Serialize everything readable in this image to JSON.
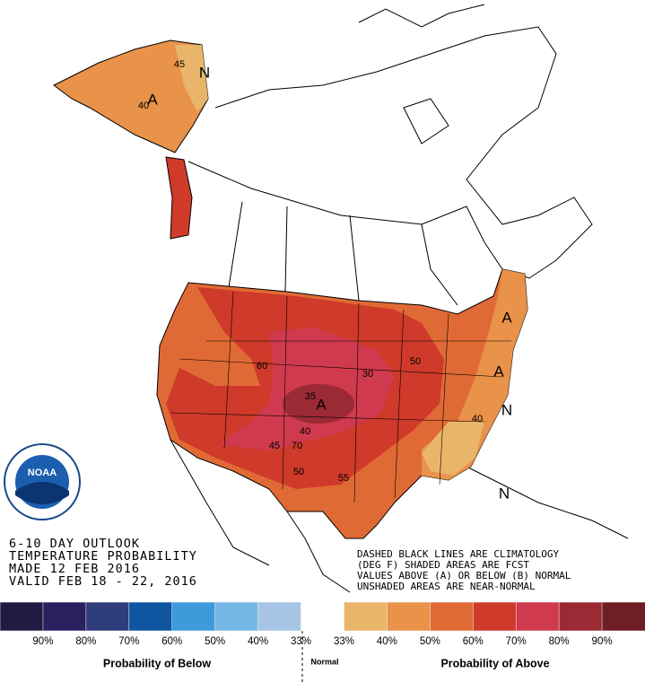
{
  "header": {
    "lines": [
      "6-10 DAY OUTLOOK",
      "TEMPERATURE PROBABILITY",
      "MADE  12 FEB 2016",
      "VALID  FEB 18 - 22, 2016"
    ]
  },
  "notes": [
    "DASHED BLACK LINES ARE CLIMATOLOGY",
    "(DEG F) SHADED AREAS ARE FCST",
    "VALUES ABOVE (A) OR BELOW (B) NORMAL",
    "UNSHADED AREAS ARE NEAR-NORMAL"
  ],
  "logo": "NOAA",
  "map_labels": [
    "A",
    "N",
    "45",
    "40",
    "A",
    "60",
    "30",
    "50",
    "35",
    "A",
    "40",
    "45",
    "70",
    "50",
    "55",
    "40",
    "A",
    "N",
    "N"
  ],
  "legend": {
    "colors": [
      "#231a43",
      "#2a2060",
      "#2f3d7a",
      "#0e56a0",
      "#3d9bdc",
      "#75b7e6",
      "#a6c5e4",
      "#ffffff",
      "#e9b56a",
      "#e8924a",
      "#e06a35",
      "#cf3a2a",
      "#d03a4e",
      "#9c2a35",
      "#6e1e24"
    ],
    "labels": [
      "90%",
      "80%",
      "70%",
      "60%",
      "50%",
      "40%",
      "33%",
      "33%",
      "40%",
      "50%",
      "60%",
      "70%",
      "80%",
      "90%"
    ],
    "below": "Probability of Below",
    "normal": "Normal",
    "above": "Probability of Above"
  }
}
